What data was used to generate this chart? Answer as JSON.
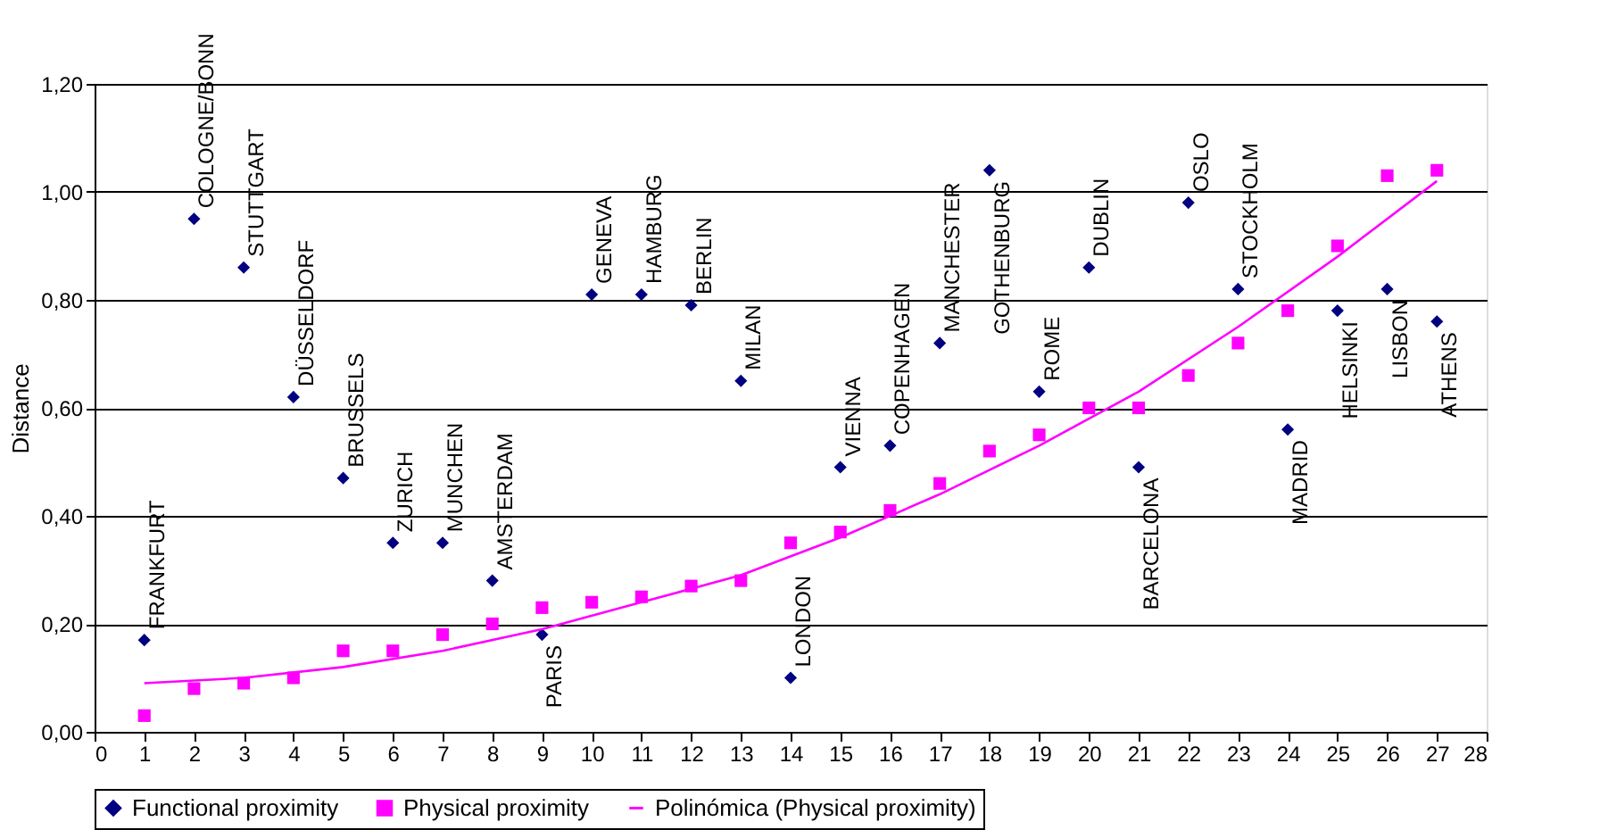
{
  "chart_data": {
    "type": "scatter",
    "ylabel": "Distance",
    "xlim": [
      0,
      28
    ],
    "xticks": [
      0,
      1,
      2,
      3,
      4,
      5,
      6,
      7,
      8,
      9,
      10,
      11,
      12,
      13,
      14,
      15,
      16,
      17,
      18,
      19,
      20,
      21,
      22,
      23,
      24,
      25,
      26,
      27,
      28
    ],
    "ylim": [
      0,
      1.2
    ],
    "yticks": [
      {
        "value": 0,
        "label": "0,00"
      },
      {
        "value": 0.2,
        "label": "0,20"
      },
      {
        "value": 0.4,
        "label": "0,40"
      },
      {
        "value": 0.6,
        "label": "0,60"
      },
      {
        "value": 0.8,
        "label": "0,80"
      },
      {
        "value": 1.0,
        "label": "1,00"
      },
      {
        "value": 1.2,
        "label": "1,20"
      }
    ],
    "grid": "y",
    "legend": "bottom",
    "x": [
      1,
      2,
      3,
      4,
      5,
      6,
      7,
      8,
      9,
      10,
      11,
      12,
      13,
      14,
      15,
      16,
      17,
      18,
      19,
      20,
      21,
      22,
      23,
      24,
      25,
      26,
      27
    ],
    "series": [
      {
        "name": "Functional proximity",
        "marker": "diamond",
        "color": "#000080",
        "values": [
          0.17,
          0.95,
          0.86,
          0.62,
          0.47,
          0.35,
          0.35,
          0.28,
          0.18,
          0.81,
          0.81,
          0.79,
          0.65,
          0.1,
          0.49,
          0.53,
          0.72,
          1.04,
          0.63,
          0.86,
          0.49,
          0.98,
          0.82,
          0.56,
          0.78,
          0.82,
          0.76
        ]
      },
      {
        "name": "Physical proximity",
        "marker": "square",
        "color": "#ff00ff",
        "values": [
          0.03,
          0.08,
          0.09,
          0.1,
          0.15,
          0.15,
          0.18,
          0.2,
          0.23,
          0.24,
          0.25,
          0.27,
          0.28,
          0.35,
          0.37,
          0.41,
          0.46,
          0.52,
          0.55,
          0.6,
          0.6,
          0.66,
          0.72,
          0.78,
          0.9,
          1.03,
          1.04
        ]
      },
      {
        "name": "Polinómica (Physical proximity)",
        "type": "line",
        "color": "#ff00ff",
        "x": [
          1,
          3,
          5,
          7,
          9,
          11,
          13,
          15,
          17,
          19,
          21,
          23,
          25,
          27
        ],
        "values": [
          0.09,
          0.1,
          0.12,
          0.15,
          0.19,
          0.24,
          0.29,
          0.36,
          0.44,
          0.53,
          0.63,
          0.75,
          0.88,
          1.02
        ]
      }
    ],
    "annotations": [
      {
        "text": "FRANKFURT",
        "x": 1,
        "y": 0.17
      },
      {
        "text": "COLOGNE/BONN",
        "x": 2,
        "y": 0.95
      },
      {
        "text": "STUTTGART",
        "x": 3,
        "y": 0.86
      },
      {
        "text": "DÜSSELDORF",
        "x": 4,
        "y": 0.62
      },
      {
        "text": "BRUSSELS",
        "x": 5,
        "y": 0.47
      },
      {
        "text": "ZURICH",
        "x": 6,
        "y": 0.35
      },
      {
        "text": "MUNCHEN",
        "x": 7,
        "y": 0.35
      },
      {
        "text": "AMSTERDAM",
        "x": 8,
        "y": 0.28
      },
      {
        "text": "PARIS",
        "x": 9,
        "y": 0.18
      },
      {
        "text": "GENEVA",
        "x": 10,
        "y": 0.81
      },
      {
        "text": "HAMBURG",
        "x": 11,
        "y": 0.81
      },
      {
        "text": "BERLIN",
        "x": 12,
        "y": 0.79
      },
      {
        "text": "MILAN",
        "x": 13,
        "y": 0.65
      },
      {
        "text": "LONDON",
        "x": 14,
        "y": 0.1
      },
      {
        "text": "VIENNA",
        "x": 15,
        "y": 0.49
      },
      {
        "text": "COPENHAGEN",
        "x": 16,
        "y": 0.53
      },
      {
        "text": "MANCHESTER",
        "x": 17,
        "y": 0.72
      },
      {
        "text": "GOTHENBURG",
        "x": 18,
        "y": 1.04
      },
      {
        "text": "ROME",
        "x": 19,
        "y": 0.63
      },
      {
        "text": "DUBLIN",
        "x": 20,
        "y": 0.86
      },
      {
        "text": "BARCELONA",
        "x": 21,
        "y": 0.49
      },
      {
        "text": "OSLO",
        "x": 22,
        "y": 0.98
      },
      {
        "text": "STOCKHOLM",
        "x": 23,
        "y": 0.82
      },
      {
        "text": "MADRID",
        "x": 24,
        "y": 0.56
      },
      {
        "text": "HELSINKI",
        "x": 25,
        "y": 0.78
      },
      {
        "text": "LISBON",
        "x": 26,
        "y": 0.82
      },
      {
        "text": "ATHENS",
        "x": 27,
        "y": 0.76
      }
    ]
  }
}
